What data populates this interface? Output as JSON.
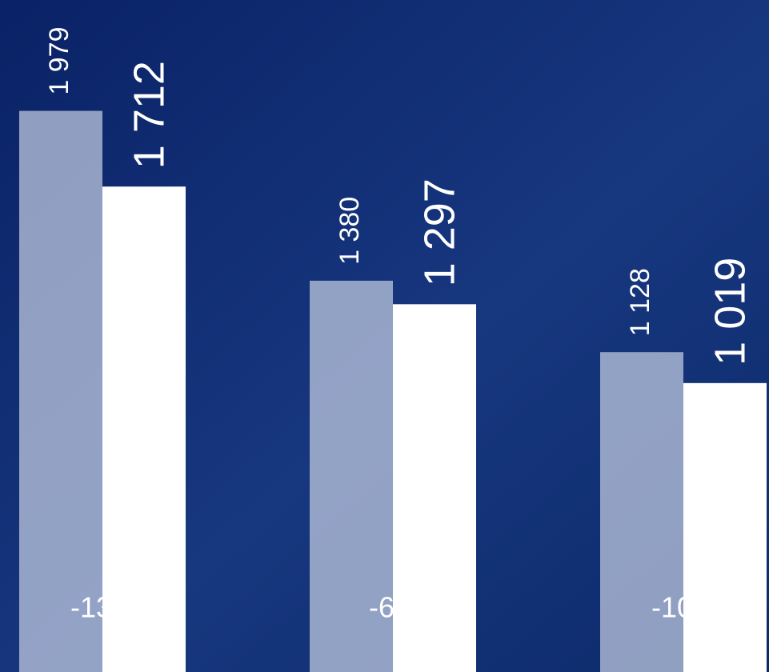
{
  "chart_data": {
    "type": "bar",
    "categories": [
      null,
      null,
      null
    ],
    "series": [
      {
        "color": "#c3cde2",
        "values": [
          1979,
          1380,
          1128
        ],
        "value_labels": [
          "1 979",
          "1 380",
          "1 128"
        ]
      },
      {
        "color": "#ffffff",
        "values": [
          1712,
          1297,
          1019
        ],
        "value_labels": [
          "1 712",
          "1 297",
          "1 019"
        ]
      }
    ],
    "annotations": [
      "-13%",
      "-6%",
      "-10%"
    ],
    "ylim": [
      0,
      2370
    ]
  }
}
